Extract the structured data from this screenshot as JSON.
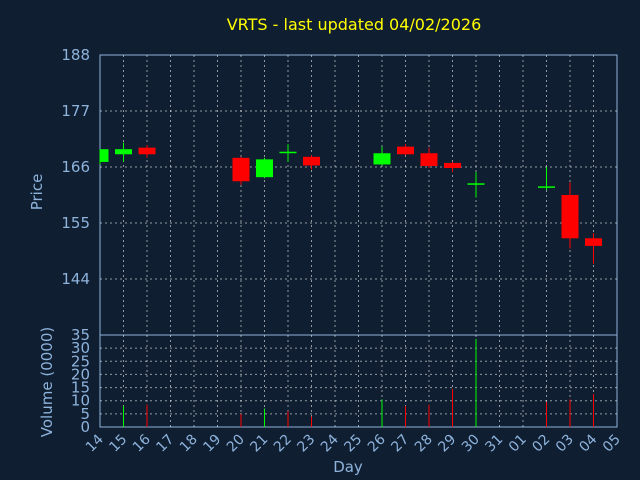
{
  "chart_data": {
    "type": "candlestick",
    "title": "VRTS - last updated 04/02/2026",
    "xlabel": "Day",
    "ylabel_price": "Price",
    "ylabel_volume": "Volume (0000)",
    "x_ticks": [
      "14",
      "15",
      "16",
      "17",
      "18",
      "19",
      "20",
      "21",
      "22",
      "23",
      "24",
      "25",
      "26",
      "27",
      "28",
      "29",
      "30",
      "31",
      "01",
      "02",
      "03",
      "04",
      "05"
    ],
    "price_ticks": [
      "188",
      "177",
      "166",
      "155",
      "144"
    ],
    "volume_ticks": [
      "35",
      "30",
      "25",
      "20",
      "15",
      "10",
      "5",
      "0"
    ],
    "price_ylim": [
      133,
      188
    ],
    "volume_ylim": [
      0,
      35
    ],
    "grid": true,
    "colors": {
      "up": "#00ff00",
      "down": "#ff0000",
      "grid": "#ffffff",
      "axis": "#8eb3dd",
      "title": "#ffff00",
      "background": "#0f1e30"
    },
    "candles": [
      {
        "day": "14",
        "open": 167.0,
        "high": 169.5,
        "low": 166.5,
        "close": 169.5
      },
      {
        "day": "15",
        "open": 168.5,
        "high": 170.8,
        "low": 167.0,
        "close": 169.5
      },
      {
        "day": "16",
        "open": 169.8,
        "high": 170.3,
        "low": 167.8,
        "close": 168.5
      },
      {
        "day": "20",
        "open": 167.8,
        "high": 168.0,
        "low": 162.5,
        "close": 163.2
      },
      {
        "day": "21",
        "open": 164.0,
        "high": 167.8,
        "low": 163.8,
        "close": 167.5
      },
      {
        "day": "22",
        "open": 169.0,
        "high": 170.5,
        "low": 167.0,
        "close": 169.0
      },
      {
        "day": "23",
        "open": 168.0,
        "high": 168.3,
        "low": 165.5,
        "close": 166.3
      },
      {
        "day": "26",
        "open": 166.5,
        "high": 170.0,
        "low": 166.3,
        "close": 168.7
      },
      {
        "day": "27",
        "open": 170.0,
        "high": 170.5,
        "low": 168.3,
        "close": 168.5
      },
      {
        "day": "28",
        "open": 168.7,
        "high": 169.8,
        "low": 165.8,
        "close": 166.2
      },
      {
        "day": "29",
        "open": 166.8,
        "high": 167.0,
        "low": 165.0,
        "close": 165.8
      },
      {
        "day": "30",
        "open": 162.8,
        "high": 165.0,
        "low": 160.0,
        "close": 162.8
      },
      {
        "day": "02",
        "open": 162.2,
        "high": 166.0,
        "low": 161.5,
        "close": 162.2
      },
      {
        "day": "03",
        "open": 160.5,
        "high": 163.0,
        "low": 150.0,
        "close": 152.0
      },
      {
        "day": "04",
        "open": 152.0,
        "high": 153.0,
        "low": 147.0,
        "close": 150.5
      }
    ],
    "volume": [
      {
        "day": "15",
        "value": 8,
        "dir": "up"
      },
      {
        "day": "16",
        "value": 8.5,
        "dir": "down"
      },
      {
        "day": "20",
        "value": 5,
        "dir": "down"
      },
      {
        "day": "21",
        "value": 7,
        "dir": "up"
      },
      {
        "day": "22",
        "value": 6,
        "dir": "down"
      },
      {
        "day": "23",
        "value": 4,
        "dir": "down"
      },
      {
        "day": "26",
        "value": 10.5,
        "dir": "up"
      },
      {
        "day": "27",
        "value": 8,
        "dir": "down"
      },
      {
        "day": "28",
        "value": 8.5,
        "dir": "down"
      },
      {
        "day": "29",
        "value": 14.5,
        "dir": "down"
      },
      {
        "day": "30",
        "value": 33.5,
        "dir": "up"
      },
      {
        "day": "02",
        "value": 9.5,
        "dir": "down"
      },
      {
        "day": "03",
        "value": 10.5,
        "dir": "down"
      },
      {
        "day": "04",
        "value": 12.5,
        "dir": "down"
      }
    ]
  }
}
